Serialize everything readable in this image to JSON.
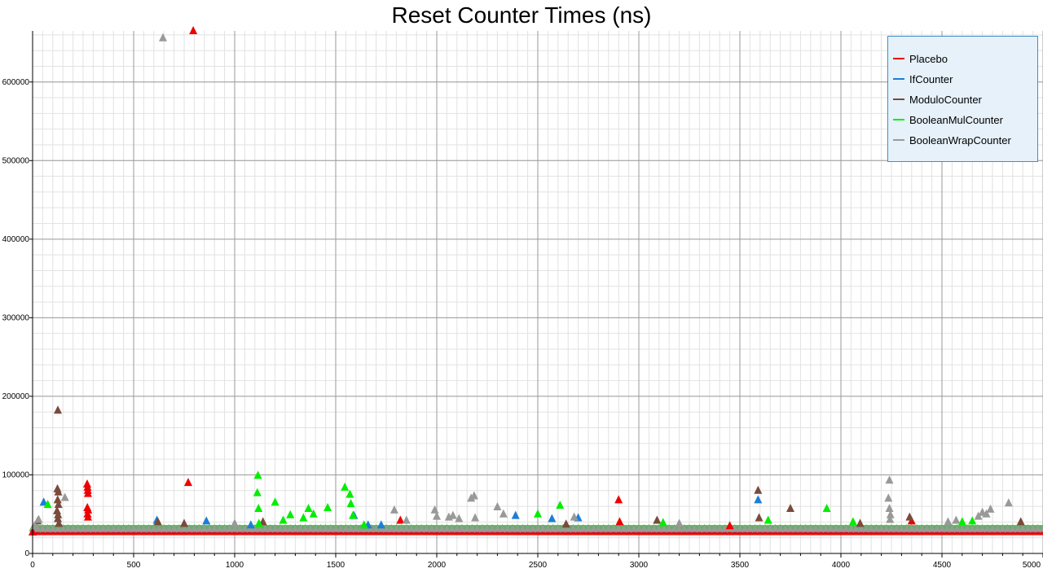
{
  "chart_data": {
    "type": "scatter",
    "title": "Reset Counter Times (ns)",
    "xlabel": "",
    "ylabel": "",
    "xlim": [
      0,
      5000
    ],
    "ylim": [
      0,
      665000
    ],
    "x_ticks": [
      0,
      500,
      1000,
      1500,
      2000,
      2500,
      3000,
      3500,
      4000,
      4500,
      5000
    ],
    "y_ticks": [
      0,
      100000,
      200000,
      300000,
      400000,
      500000,
      600000
    ],
    "y_tick_labels": [
      "0",
      "100000",
      "200000",
      "300000",
      "400000",
      "500000",
      "600000"
    ],
    "grid": true,
    "legend_position": "top-right",
    "marker": "triangle",
    "baseline_note_values": {
      "Placebo": 27000,
      "IfCounter": 31000,
      "ModuloCounter": 32000,
      "BooleanMulCounter": 32000,
      "BooleanWrapCounter": 31000
    },
    "series": [
      {
        "name": "Placebo",
        "color": "#ee0000",
        "baseline": 27000,
        "outliers": [
          [
            0,
            27000
          ],
          [
            795,
            665000
          ],
          [
            270,
            88000
          ],
          [
            272,
            84000
          ],
          [
            273,
            80000
          ],
          [
            274,
            76000
          ],
          [
            271,
            58000
          ],
          [
            275,
            55000
          ],
          [
            272,
            50000
          ],
          [
            274,
            46000
          ],
          [
            770,
            90000
          ],
          [
            1820,
            42000
          ],
          [
            2900,
            68000
          ],
          [
            2905,
            40000
          ],
          [
            4350,
            41000
          ],
          [
            3450,
            35000
          ]
        ]
      },
      {
        "name": "IfCounter",
        "color": "#1c7ed6",
        "baseline": 31000,
        "outliers": [
          [
            55,
            65000
          ],
          [
            615,
            42000
          ],
          [
            860,
            41000
          ],
          [
            1080,
            36000
          ],
          [
            1590,
            48000
          ],
          [
            1725,
            36000
          ],
          [
            2390,
            48000
          ],
          [
            2570,
            44000
          ],
          [
            2700,
            45000
          ],
          [
            3590,
            68000
          ],
          [
            1660,
            36000
          ]
        ]
      },
      {
        "name": "ModuloCounter",
        "color": "#7a4a3a",
        "baseline": 32000,
        "outliers": [
          [
            25,
            41000
          ],
          [
            125,
            182000
          ],
          [
            123,
            82000
          ],
          [
            127,
            78000
          ],
          [
            124,
            68000
          ],
          [
            128,
            62000
          ],
          [
            121,
            54000
          ],
          [
            126,
            49000
          ],
          [
            125,
            44000
          ],
          [
            130,
            38000
          ],
          [
            620,
            40000
          ],
          [
            750,
            38000
          ],
          [
            1140,
            40000
          ],
          [
            2640,
            37000
          ],
          [
            3090,
            42000
          ],
          [
            3590,
            80000
          ],
          [
            3595,
            45000
          ],
          [
            3750,
            57000
          ],
          [
            4095,
            38000
          ],
          [
            4340,
            46000
          ],
          [
            4890,
            40000
          ]
        ]
      },
      {
        "name": "BooleanMulCounter",
        "color": "#00ee00",
        "baseline": 32000,
        "outliers": [
          [
            75,
            62000
          ],
          [
            1115,
            99000
          ],
          [
            1112,
            77000
          ],
          [
            1118,
            57000
          ],
          [
            1120,
            38000
          ],
          [
            1200,
            65000
          ],
          [
            1240,
            42000
          ],
          [
            1275,
            49000
          ],
          [
            1340,
            45000
          ],
          [
            1365,
            57000
          ],
          [
            1390,
            50000
          ],
          [
            1460,
            58000
          ],
          [
            1545,
            84000
          ],
          [
            1570,
            75000
          ],
          [
            1575,
            63000
          ],
          [
            1585,
            48000
          ],
          [
            1640,
            36000
          ],
          [
            2500,
            50000
          ],
          [
            2610,
            61000
          ],
          [
            3120,
            39000
          ],
          [
            3640,
            42000
          ],
          [
            3930,
            57000
          ],
          [
            4060,
            40000
          ],
          [
            4600,
            40000
          ],
          [
            4650,
            41000
          ]
        ]
      },
      {
        "name": "BooleanWrapCounter",
        "color": "#999999",
        "baseline": 31000,
        "outliers": [
          [
            10,
            35000
          ],
          [
            30,
            43000
          ],
          [
            160,
            71000
          ],
          [
            645,
            656000
          ],
          [
            1000,
            38000
          ],
          [
            1790,
            55000
          ],
          [
            1850,
            42000
          ],
          [
            1990,
            55000
          ],
          [
            2000,
            47000
          ],
          [
            2060,
            46000
          ],
          [
            2080,
            48000
          ],
          [
            2110,
            44000
          ],
          [
            2170,
            70000
          ],
          [
            2185,
            73000
          ],
          [
            2190,
            45000
          ],
          [
            2300,
            59000
          ],
          [
            2330,
            50000
          ],
          [
            2680,
            46000
          ],
          [
            3200,
            38000
          ],
          [
            4240,
            93000
          ],
          [
            4235,
            70000
          ],
          [
            4240,
            57000
          ],
          [
            4245,
            49000
          ],
          [
            4243,
            43000
          ],
          [
            4530,
            40000
          ],
          [
            4570,
            42000
          ],
          [
            4680,
            47000
          ],
          [
            4700,
            52000
          ],
          [
            4740,
            56000
          ],
          [
            4720,
            50000
          ],
          [
            4830,
            64000
          ]
        ]
      }
    ]
  },
  "legend": {
    "items": [
      {
        "label": "Placebo",
        "color": "#ee0000"
      },
      {
        "label": "IfCounter",
        "color": "#1c7ed6"
      },
      {
        "label": "ModuloCounter",
        "color": "#7a4a3a"
      },
      {
        "label": "BooleanMulCounter",
        "color": "#00ee00"
      },
      {
        "label": "BooleanWrapCounter",
        "color": "#999999"
      }
    ]
  }
}
